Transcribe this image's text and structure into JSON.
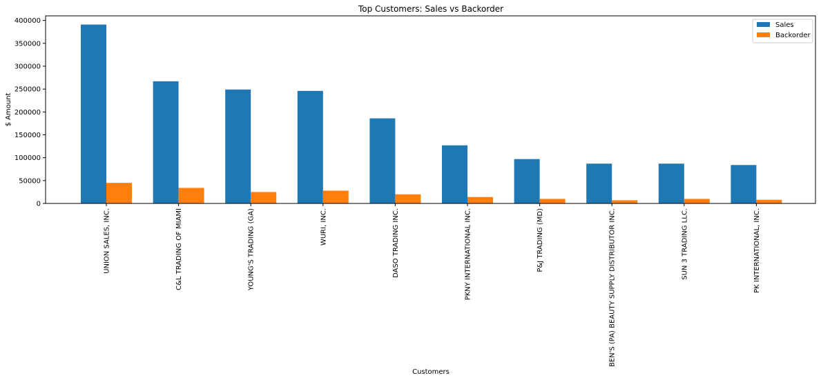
{
  "chart_data": {
    "type": "bar",
    "title": "Top Customers: Sales vs Backorder",
    "xlabel": "Customers",
    "ylabel": "$ Amount",
    "ylim": [
      0,
      410000
    ],
    "yticks": [
      0,
      50000,
      100000,
      150000,
      200000,
      250000,
      300000,
      350000,
      400000
    ],
    "grid": false,
    "legend_position": "top-right",
    "categories": [
      "UNION SALES, INC.",
      "C&L TRADING OF MIAMI",
      "YOUNG'S TRADING (GA)",
      "WURI, INC.",
      "DASO TRADING INC.",
      "PKNY INTERNATIONAL INC.",
      "P&J TRADING (MD)",
      "BEN'S (PA) BEAUTY SUPPLY DISTRIBUTOR INC.",
      "SUN 3 TRADING LLC.",
      "PK INTERNATIONAL, INC."
    ],
    "series": [
      {
        "name": "Sales",
        "color": "#1f77b4",
        "values": [
          391000,
          267000,
          249000,
          246000,
          186000,
          127000,
          97000,
          87000,
          87000,
          84000
        ]
      },
      {
        "name": "Backorder",
        "color": "#ff7f0e",
        "values": [
          45000,
          34000,
          25000,
          28000,
          20000,
          14000,
          10000,
          7000,
          10000,
          8000
        ]
      }
    ]
  }
}
